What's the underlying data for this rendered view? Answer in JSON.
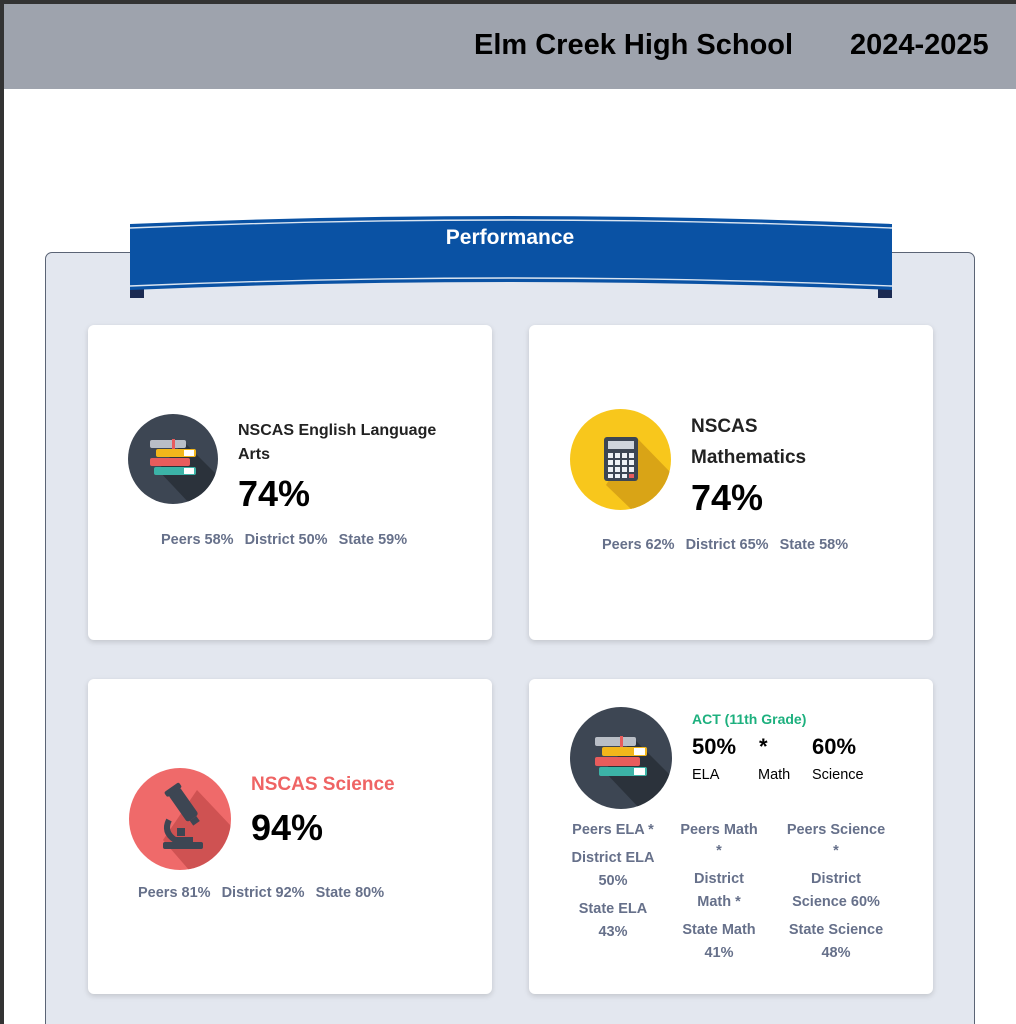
{
  "header": {
    "school_name": "Elm Creek High School",
    "school_year": "2024-2025"
  },
  "section": {
    "title": "Performance"
  },
  "colors": {
    "header_bg": "#9ea3ad",
    "ribbon": "#0a52a4",
    "panel_bg": "#e3e7ef",
    "science_red": "#e85c5c",
    "act_green": "#1db07e",
    "compare_text": "#66708a"
  },
  "cards": {
    "ela": {
      "icon": "books-icon",
      "label": "NSCAS English Language Arts",
      "value": "74%",
      "peers": "Peers 58%",
      "district": "District 50%",
      "state": "State 59%"
    },
    "math": {
      "icon": "calculator-icon",
      "label_line1": "NSCAS",
      "label_line2": "Mathematics",
      "value": "74%",
      "peers": "Peers 62%",
      "district": "District 65%",
      "state": "State 58%"
    },
    "science": {
      "icon": "microscope-icon",
      "label": "NSCAS Science",
      "value": "94%",
      "peers": "Peers 81%",
      "district": "District 92%",
      "state": "State 80%"
    },
    "act": {
      "icon": "books-icon",
      "label": "ACT (11th Grade)",
      "ela_value": "50%",
      "ela_label": "ELA",
      "math_value": "*",
      "math_label": "Math",
      "science_value": "60%",
      "science_label": "Science",
      "ela_col": [
        "Peers ELA *",
        "District ELA",
        "50%",
        "State ELA",
        "43%"
      ],
      "math_col": [
        "Peers Math",
        "*",
        "District",
        "Math *",
        "State Math",
        "41%"
      ],
      "science_col": [
        "Peers Science",
        "*",
        "District",
        "Science 60%",
        "State Science",
        "48%"
      ]
    }
  }
}
